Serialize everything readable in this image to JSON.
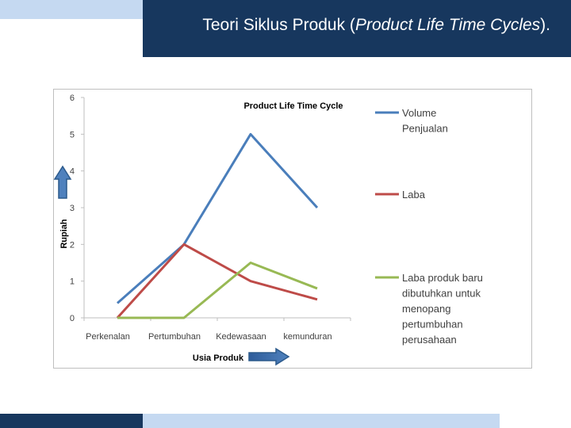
{
  "slide": {
    "title_main": "Teori Siklus Produk (",
    "title_italic": "Product Life Time Cycles",
    "title_end": ")."
  },
  "chart_data": {
    "type": "line",
    "title": "Product Life Time Cycle",
    "xlabel": "Usia Produk",
    "ylabel": "Rupiah",
    "ylim": [
      0,
      6
    ],
    "yticks": [
      "0",
      "1",
      "2",
      "3",
      "4",
      "5",
      "6"
    ],
    "categories": [
      "Perkenalan",
      "Pertumbuhan",
      "Kedewasaan",
      "kemunduran"
    ],
    "grid": false,
    "legend_position": "right",
    "series": [
      {
        "name": "Volume Penjualan",
        "legend_lines": [
          "Volume",
          "Penjualan"
        ],
        "color": "#4a7ebb",
        "values": [
          0.4,
          2.0,
          5.0,
          3.0
        ]
      },
      {
        "name": "Laba",
        "legend_lines": [
          "Laba"
        ],
        "color": "#be4b48",
        "values": [
          0.0,
          2.0,
          1.0,
          0.5
        ]
      },
      {
        "name": "Laba produk baru dibutuhkan untuk menopang pertumbuhan perusahaan",
        "legend_lines": [
          "Laba produk baru",
          "dibutuhkan untuk",
          "menopang",
          "pertumbuhan",
          "perusahaan"
        ],
        "color": "#98b954",
        "values": [
          0.0,
          0.0,
          1.5,
          0.8
        ]
      }
    ]
  }
}
